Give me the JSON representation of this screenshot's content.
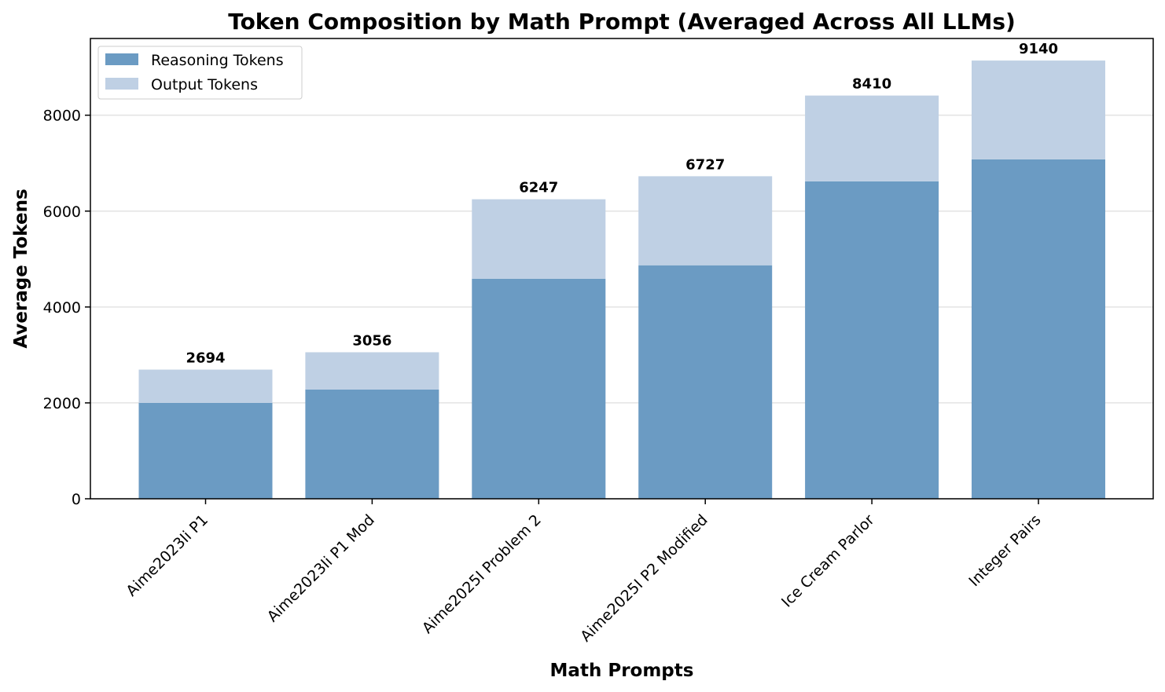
{
  "chart_data": {
    "type": "bar",
    "stacked": true,
    "title": "Token Composition by Math Prompt (Averaged Across All LLMs)",
    "xlabel": "Math Prompts",
    "ylabel": "Average Tokens",
    "categories": [
      "Aime2023Ii P1",
      "Aime2023Ii P1 Mod",
      "Aime2025I Problem 2",
      "Aime2025I P2 Modified",
      "Ice Cream Parlor",
      "Integer Pairs"
    ],
    "series": [
      {
        "name": "Reasoning Tokens",
        "color": "#6b9bc3",
        "values": [
          2000,
          2280,
          4590,
          4870,
          6620,
          7080
        ]
      },
      {
        "name": "Output Tokens",
        "color": "#bfd0e4",
        "values": [
          694,
          776,
          1657,
          1857,
          1790,
          2060
        ]
      }
    ],
    "totals": [
      "2694",
      "3056",
      "6247",
      "6727",
      "8410",
      "9140"
    ],
    "ylim": [
      0,
      9600
    ],
    "yticks": [
      0,
      2000,
      4000,
      6000,
      8000
    ],
    "ytick_labels": [
      "0",
      "2000",
      "4000",
      "6000",
      "8000"
    ],
    "grid": true,
    "legend_position": "top-left"
  }
}
